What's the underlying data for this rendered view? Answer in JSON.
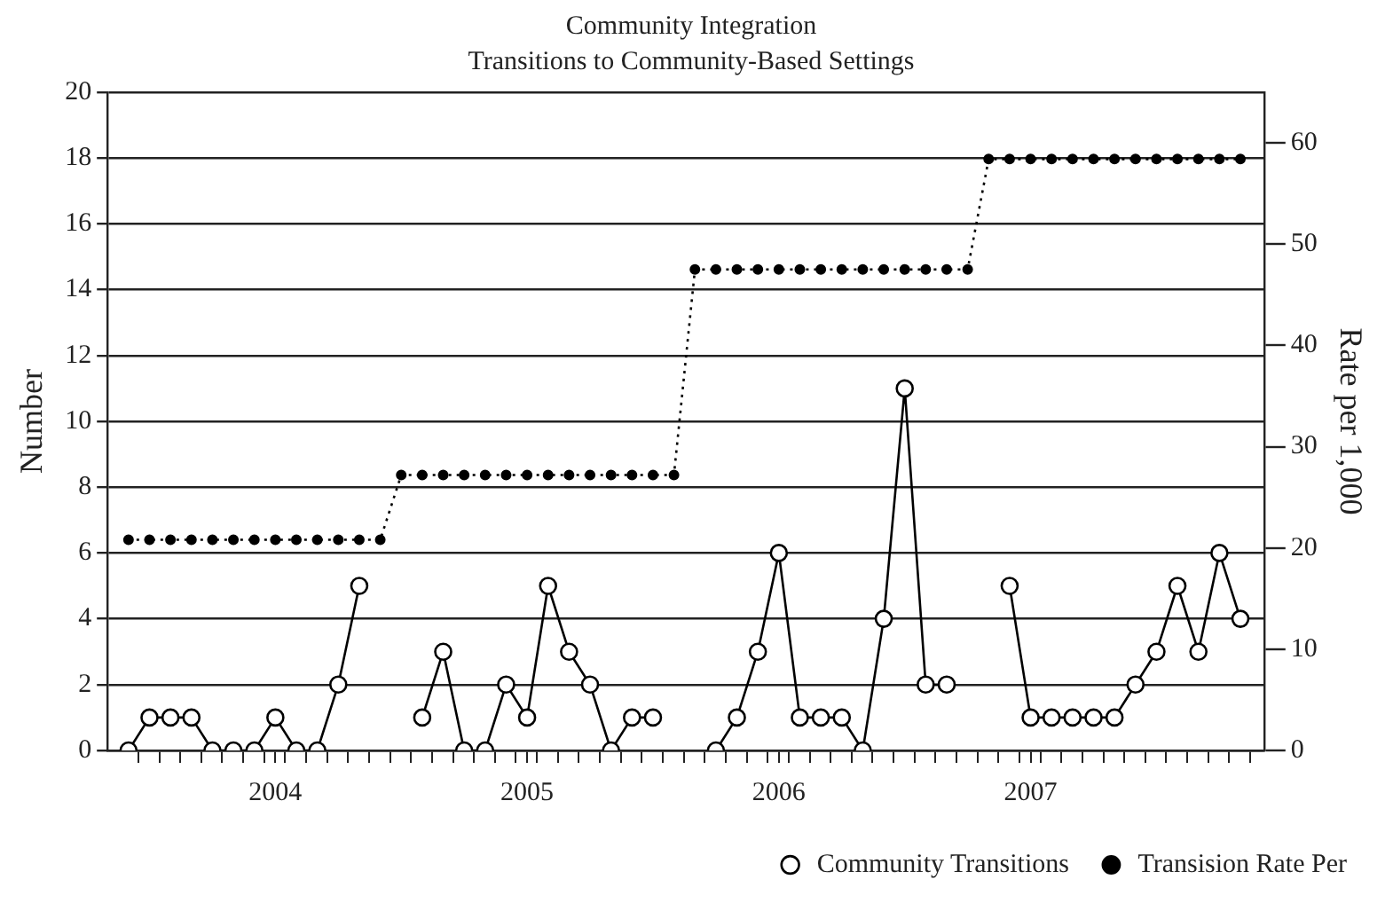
{
  "chart_data": {
    "type": "line",
    "title": "Community Integration",
    "subtitle": "Transitions to Community-Based Settings",
    "ylabel": "Number",
    "y2label": "Rate per 1,000",
    "x": [
      "2003-12",
      "2004-01",
      "2004-02",
      "2004-03",
      "2004-04",
      "2004-05",
      "2004-06",
      "2004-07",
      "2004-08",
      "2004-09",
      "2004-10",
      "2004-11",
      "2004-12",
      "2005-01",
      "2005-02",
      "2005-03",
      "2005-04",
      "2005-05",
      "2005-06",
      "2005-07",
      "2005-08",
      "2005-09",
      "2005-10",
      "2005-11",
      "2005-12",
      "2006-01",
      "2006-02",
      "2006-03",
      "2006-04",
      "2006-05",
      "2006-06",
      "2006-07",
      "2006-08",
      "2006-09",
      "2006-10",
      "2006-11",
      "2006-12",
      "2007-01",
      "2007-02",
      "2007-03",
      "2007-04",
      "2007-05",
      "2007-06",
      "2007-07",
      "2007-08",
      "2007-09",
      "2007-10",
      "2007-11",
      "2007-12",
      "2008-01",
      "2008-02",
      "2008-03",
      "2008-04",
      "2008-05"
    ],
    "series": [
      {
        "name": "Community Transitions",
        "color": "#000000",
        "marker": "circle",
        "line_style": "solid",
        "values": [
          0,
          1,
          1,
          1,
          0,
          0,
          0,
          1,
          0,
          0,
          2,
          5,
          null,
          null,
          1,
          3,
          0,
          0,
          2,
          1,
          5,
          3,
          2,
          0,
          1,
          1,
          null,
          null,
          0,
          1,
          3,
          6,
          1,
          1,
          1,
          0,
          4,
          11,
          2,
          2,
          null,
          null,
          5,
          1,
          1,
          1,
          1,
          1,
          2,
          3,
          5,
          3,
          6,
          4
        ]
      },
      {
        "name": "Transision Rate Per",
        "color": "#000000",
        "axis": "y2",
        "marker": "circle",
        "line_style": "dotted",
        "values": [
          20.8,
          20.8,
          20.8,
          20.8,
          20.8,
          20.8,
          20.8,
          20.8,
          20.8,
          20.8,
          20.8,
          20.8,
          20.8,
          27.2,
          27.2,
          27.2,
          27.2,
          27.2,
          27.2,
          27.2,
          27.2,
          27.2,
          27.2,
          27.2,
          27.2,
          27.2,
          27.2,
          47.5,
          47.5,
          47.5,
          47.5,
          47.5,
          47.5,
          47.5,
          47.5,
          47.5,
          47.5,
          47.5,
          47.5,
          47.5,
          47.5,
          58.4,
          58.4,
          58.4,
          58.4,
          58.4,
          58.4,
          58.4,
          58.4,
          58.4,
          58.4,
          58.4,
          58.4,
          58.4
        ]
      }
    ],
    "xlim": [
      "2003-11",
      "2008-06-05"
    ],
    "xticks": [
      {
        "value": "2004-07",
        "label": "2004"
      },
      {
        "value": "2005-07",
        "label": "2005"
      },
      {
        "value": "2006-07",
        "label": "2006"
      },
      {
        "value": "2007-07",
        "label": "2007"
      },
      {
        "value": "2003-12-15",
        "label": null
      },
      {
        "value": "2004-01-15",
        "label": null
      },
      {
        "value": "2004-02-15",
        "label": null
      },
      {
        "value": "2004-03-15",
        "label": null
      },
      {
        "value": "2004-04-15",
        "label": null
      },
      {
        "value": "2004-05-15",
        "label": null
      },
      {
        "value": "2004-06-15",
        "label": null
      },
      {
        "value": "2004-07-15",
        "label": null
      },
      {
        "value": "2004-08-15",
        "label": null
      },
      {
        "value": "2004-09-15",
        "label": null
      },
      {
        "value": "2004-10-15",
        "label": null
      },
      {
        "value": "2004-11-15",
        "label": null
      },
      {
        "value": "2004-12-15",
        "label": null
      },
      {
        "value": "2005-01-15",
        "label": null
      },
      {
        "value": "2005-02-15",
        "label": null
      },
      {
        "value": "2005-03-15",
        "label": null
      },
      {
        "value": "2005-04-15",
        "label": null
      },
      {
        "value": "2005-05-15",
        "label": null
      },
      {
        "value": "2005-06-15",
        "label": null
      },
      {
        "value": "2005-07-15",
        "label": null
      },
      {
        "value": "2005-08-15",
        "label": null
      },
      {
        "value": "2005-09-15",
        "label": null
      },
      {
        "value": "2005-10-15",
        "label": null
      },
      {
        "value": "2005-11-15",
        "label": null
      },
      {
        "value": "2005-12-15",
        "label": null
      },
      {
        "value": "2006-01-15",
        "label": null
      },
      {
        "value": "2006-02-15",
        "label": null
      },
      {
        "value": "2006-03-15",
        "label": null
      },
      {
        "value": "2006-04-15",
        "label": null
      },
      {
        "value": "2006-05-15",
        "label": null
      },
      {
        "value": "2006-06-15",
        "label": null
      },
      {
        "value": "2006-07-15",
        "label": null
      },
      {
        "value": "2006-08-15",
        "label": null
      },
      {
        "value": "2006-09-15",
        "label": null
      },
      {
        "value": "2006-10-15",
        "label": null
      },
      {
        "value": "2006-11-15",
        "label": null
      },
      {
        "value": "2006-12-15",
        "label": null
      },
      {
        "value": "2007-01-15",
        "label": null
      },
      {
        "value": "2007-02-15",
        "label": null
      },
      {
        "value": "2007-03-15",
        "label": null
      },
      {
        "value": "2007-04-15",
        "label": null
      },
      {
        "value": "2007-05-15",
        "label": null
      },
      {
        "value": "2007-06-15",
        "label": null
      },
      {
        "value": "2007-07-15",
        "label": null
      },
      {
        "value": "2007-08-15",
        "label": null
      },
      {
        "value": "2007-09-15",
        "label": null
      },
      {
        "value": "2007-10-15",
        "label": null
      },
      {
        "value": "2007-11-15",
        "label": null
      },
      {
        "value": "2007-12-15",
        "label": null
      },
      {
        "value": "2008-01-15",
        "label": null
      },
      {
        "value": "2008-02-15",
        "label": null
      },
      {
        "value": "2008-03-15",
        "label": null
      },
      {
        "value": "2008-04-15",
        "label": null
      },
      {
        "value": "2008-05-15",
        "label": null
      }
    ],
    "ylim": [
      0,
      20
    ],
    "yticks": [
      0,
      2,
      4,
      6,
      8,
      10,
      12,
      14,
      16,
      18,
      20
    ],
    "y2lim": [
      0,
      65
    ],
    "y2ticks": [
      0,
      10,
      20,
      30,
      40,
      50,
      60
    ],
    "grid": "y",
    "legend": "bottom right"
  }
}
